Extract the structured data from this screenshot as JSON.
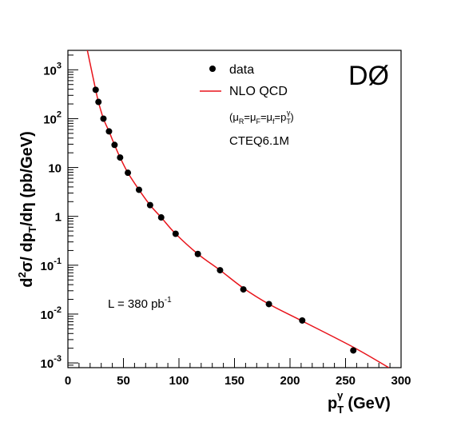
{
  "chart_data": {
    "type": "scatter",
    "experiment_label": "DØ",
    "xlabel_main": "p",
    "xlabel_sub": "T",
    "xlabel_sup": "γ",
    "xlabel_unit": "(GeV)",
    "ylabel_parts": {
      "d": "d",
      "sup2": "2",
      "mid": "σ/ dp",
      "subT": "T",
      "end": "/dη (pb/GeV)"
    },
    "luminosity": {
      "prefix": "L = 380 pb",
      "exponent": "-1"
    },
    "legend": {
      "position": "top-right",
      "data_label": "data",
      "theory_label": "NLO QCD",
      "scale_note": {
        "open": "(",
        "mu": "μ",
        "R": "R",
        "F": "F",
        "f": "f",
        "eq": "=",
        "p": "p",
        "T": "T",
        "gamma": "γ",
        "close": ")"
      },
      "pdf": "CTEQ6.1M"
    },
    "x_axis": {
      "range": [
        0,
        300
      ],
      "ticks": [
        0,
        50,
        100,
        150,
        200,
        250,
        300
      ],
      "tick_labels": [
        "0",
        "50",
        "100",
        "150",
        "200",
        "250",
        "300"
      ]
    },
    "y_axis": {
      "scale": "log",
      "range": [
        0.0008,
        2500
      ],
      "ticks": [
        {
          "value": 0.001,
          "base": "10",
          "exp": "-3"
        },
        {
          "value": 0.01,
          "base": "10",
          "exp": "-2"
        },
        {
          "value": 0.1,
          "base": "10",
          "exp": "-1"
        },
        {
          "value": 1,
          "base": "1",
          "exp": ""
        },
        {
          "value": 10,
          "base": "10",
          "exp": ""
        },
        {
          "value": 100,
          "base": "10",
          "exp": "2"
        },
        {
          "value": 1000,
          "base": "10",
          "exp": "3"
        }
      ]
    },
    "series": [
      {
        "name": "data",
        "kind": "points",
        "color": "#000000",
        "points": [
          [
            25,
            390
          ],
          [
            27.5,
            220
          ],
          [
            32,
            100
          ],
          [
            37,
            55
          ],
          [
            42,
            29
          ],
          [
            47,
            16
          ],
          [
            54,
            7.8
          ],
          [
            64,
            3.5
          ],
          [
            74,
            1.7
          ],
          [
            84,
            0.95
          ],
          [
            97,
            0.44
          ],
          [
            117,
            0.17
          ],
          [
            137,
            0.079
          ],
          [
            158,
            0.032
          ],
          [
            181,
            0.016
          ],
          [
            211,
            0.0074
          ],
          [
            257,
            0.0018
          ]
        ]
      },
      {
        "name": "NLO QCD",
        "kind": "curve",
        "color": "#e8141b",
        "points": [
          [
            17.5,
            2500
          ],
          [
            20,
            1340
          ],
          [
            25,
            390
          ],
          [
            27.5,
            220
          ],
          [
            32,
            100
          ],
          [
            37,
            55
          ],
          [
            42,
            29
          ],
          [
            47,
            16
          ],
          [
            54,
            7.8
          ],
          [
            64,
            3.5
          ],
          [
            74,
            1.7
          ],
          [
            84,
            0.95
          ],
          [
            97,
            0.44
          ],
          [
            117,
            0.17
          ],
          [
            137,
            0.079
          ],
          [
            158,
            0.034
          ],
          [
            181,
            0.016
          ],
          [
            211,
            0.0072
          ],
          [
            257,
            0.0021
          ],
          [
            289,
            0.0008
          ]
        ]
      }
    ],
    "grid": false
  }
}
